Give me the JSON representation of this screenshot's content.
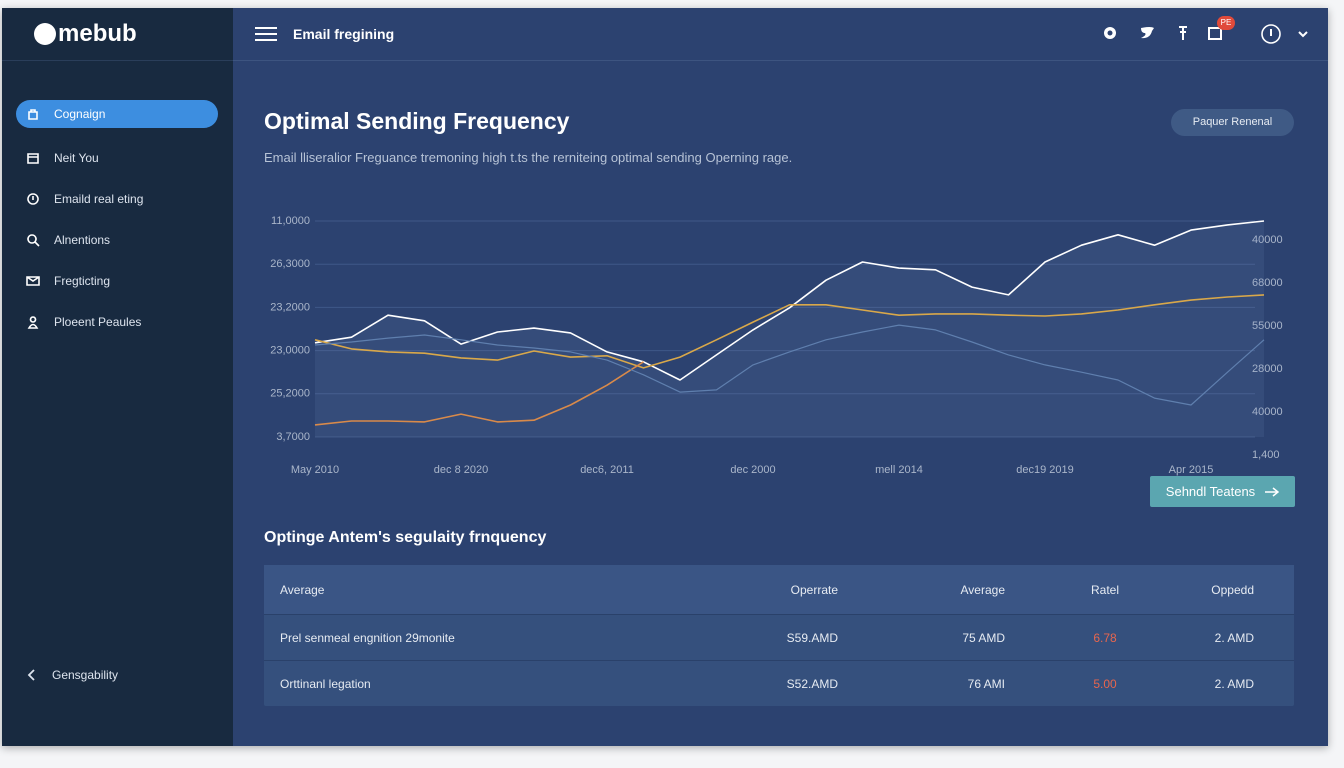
{
  "header": {
    "logo": "mebub",
    "title": "Email fregining",
    "badge": "PE"
  },
  "sidebar": {
    "items": [
      "Cognaign",
      "Neit You",
      "Emaild real eting",
      "Alnentions",
      "Fregticting",
      "Ploeent Peaules"
    ],
    "footer": "Gensgability"
  },
  "page": {
    "title": "Optimal Sending Frequency",
    "subtitle": "Email lliseralior Freguance tremoning high t.ts the rerniteing optimal sending Operning rage.",
    "top_button": "Paquer Renenal",
    "action_button": "Sehndl Teatens",
    "section_title": "Optinge Antem's segulaity frnquency"
  },
  "chart_data": {
    "type": "line",
    "x": [
      0,
      0.5,
      1,
      1.5,
      2,
      2.5,
      3,
      3.5,
      4,
      4.5,
      5,
      5.5,
      6,
      6.5,
      7,
      7.5,
      8,
      8.5,
      9,
      9.5,
      10,
      10.5,
      11,
      11.5,
      12,
      12.5,
      13
    ],
    "xlim": [
      0,
      13
    ],
    "xticks": [
      {
        "value": 0,
        "label": "May 2010"
      },
      {
        "value": 2,
        "label": "dec 8 2020"
      },
      {
        "value": 4,
        "label": "dec6, 2011"
      },
      {
        "value": 6,
        "label": "dec 2000"
      },
      {
        "value": 8,
        "label": "mell 2014"
      },
      {
        "value": 10,
        "label": "dec19 2019"
      },
      {
        "value": 12,
        "label": "Apr 2015"
      }
    ],
    "ylim": [
      0,
      5
    ],
    "yticks": [
      {
        "value": 5,
        "label": "11,0000"
      },
      {
        "value": 4,
        "label": "26,3000"
      },
      {
        "value": 3,
        "label": "23,2000"
      },
      {
        "value": 2,
        "label": "23,0000"
      },
      {
        "value": 1,
        "label": "25,2000"
      },
      {
        "value": 0,
        "label": "3,7000"
      }
    ],
    "y2lim": [
      0,
      5
    ],
    "y2ticks": [
      {
        "value": 5,
        "label": "40000"
      },
      {
        "value": 4,
        "label": "68000"
      },
      {
        "value": 3,
        "label": "55000"
      },
      {
        "value": 2,
        "label": "28000"
      },
      {
        "value": 1,
        "label": "40000"
      },
      {
        "value": 0,
        "label": "1,400"
      }
    ],
    "grid": true,
    "series": [
      {
        "color": "#ffffff",
        "values": [
          2.18,
          2.31,
          2.82,
          2.69,
          2.15,
          2.43,
          2.52,
          2.41,
          1.97,
          1.74,
          1.32,
          1.9,
          2.48,
          2.99,
          3.63,
          4.05,
          3.91,
          3.87,
          3.47,
          3.29,
          4.05,
          4.44,
          4.68,
          4.44,
          4.79,
          4.91,
          5.0
        ]
      },
      {
        "color": "#d9a84a",
        "values": [
          2.25,
          2.04,
          1.97,
          1.94,
          1.83,
          1.78,
          1.99,
          1.85,
          1.88,
          1.6,
          1.85,
          2.25,
          2.66,
          3.06,
          3.06,
          2.94,
          2.82,
          2.85,
          2.85,
          2.82,
          2.8,
          2.85,
          2.94,
          3.06,
          3.17,
          3.24,
          3.29
        ]
      },
      {
        "color": "#d98a4a",
        "values": [
          0.28,
          0.37,
          0.37,
          0.35,
          0.53,
          0.35,
          0.39,
          0.74,
          1.2,
          1.74,
          null,
          null,
          null,
          null,
          null,
          null,
          null,
          null,
          null,
          null,
          null,
          null,
          null,
          null,
          null,
          null,
          null
        ]
      },
      {
        "color": "#5f7fae",
        "values": [
          2.13,
          2.2,
          2.29,
          2.36,
          2.25,
          2.13,
          2.06,
          1.97,
          1.78,
          1.44,
          1.04,
          1.09,
          1.67,
          1.97,
          2.25,
          2.43,
          2.59,
          2.48,
          2.2,
          1.9,
          1.67,
          1.5,
          1.32,
          0.9,
          0.74,
          1.5,
          2.25
        ]
      }
    ]
  },
  "table": {
    "headers": [
      "Average",
      "Operrate",
      "Average",
      "Ratel",
      "Oppedd"
    ],
    "rows": [
      [
        "Prel senmeal engnition 29monite",
        "S59.AMD",
        "75 AMD",
        "6.78",
        "2. AMD"
      ],
      [
        "Orttinanl legation",
        "S52.AMD",
        "76 AMI",
        "5.00",
        "2. AMD"
      ]
    ]
  }
}
